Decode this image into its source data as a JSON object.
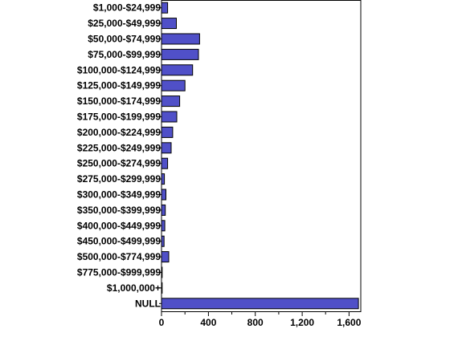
{
  "chart_data": {
    "type": "bar",
    "orientation": "horizontal",
    "categories": [
      "$1,000-$24,999",
      "$25,000-$49,999",
      "$50,000-$74,999",
      "$75,000-$99,999",
      "$100,000-$124,999",
      "$125,000-$149,999",
      "$150,000-$174,999",
      "$175,000-$199,999",
      "$200,000-$224,999",
      "$225,000-$249,999",
      "$250,000-$274,999",
      "$275,000-$299,999",
      "$300,000-$349,999",
      "$350,000-$399,999",
      "$400,000-$449,999",
      "$450,000-$499,999",
      "$500,000-$774,999",
      "$775,000-$999,999",
      "$1,000,000+",
      "NULL"
    ],
    "values": [
      52,
      127,
      325,
      315,
      265,
      200,
      155,
      130,
      95,
      82,
      52,
      25,
      38,
      32,
      28,
      22,
      62,
      3,
      5,
      1680
    ],
    "xlim": [
      0,
      1700
    ],
    "xticks": [
      0,
      400,
      800,
      1200,
      1600
    ],
    "xtick_labels": [
      "0",
      "400",
      "800",
      "1,200",
      "1,600"
    ],
    "title": "",
    "xlabel": "",
    "ylabel": "",
    "grid": false,
    "bar_color": "#5050c8",
    "bar_edge_color": "#000000"
  }
}
